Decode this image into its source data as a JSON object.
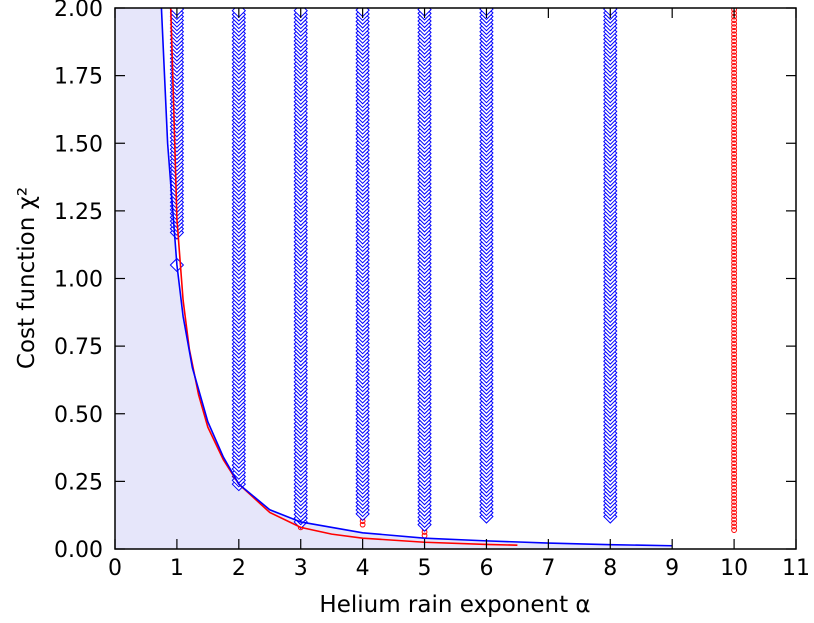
{
  "chart_data": {
    "type": "scatter",
    "xlabel": "Helium rain exponent α",
    "ylabel": "Cost function χ²",
    "xlim": [
      0,
      11
    ],
    "ylim": [
      0,
      2
    ],
    "x_ticks": [
      "0",
      "1",
      "2",
      "3",
      "4",
      "5",
      "6",
      "7",
      "8",
      "9",
      "10",
      "11"
    ],
    "y_ticks": [
      "0.00",
      "0.25",
      "0.50",
      "0.75",
      "1.00",
      "1.25",
      "1.50",
      "1.75",
      "2.00"
    ],
    "grid": false,
    "shaded_region": {
      "boundary": "blue envelope curve",
      "color": "#e6e6fa"
    },
    "series": [
      {
        "marker": "circle",
        "color": "#ff0000",
        "columns": [
          {
            "x": 1,
            "y_min": 1.22,
            "y_max": 2.0
          },
          {
            "x": 2,
            "y_min": 0.24,
            "y_max": 2.0
          },
          {
            "x": 3,
            "y_min": 0.08,
            "y_max": 2.0
          },
          {
            "x": 4,
            "y_min": 0.09,
            "y_max": 2.0
          },
          {
            "x": 5,
            "y_min": 0.05,
            "y_max": 2.0
          },
          {
            "x": 10,
            "y_min": 0.07,
            "y_max": 2.0
          }
        ],
        "envelope": {
          "x": [
            0.9,
            0.95,
            1,
            1.1,
            1.2,
            1.35,
            1.5,
            1.75,
            2,
            2.5,
            3,
            3.5,
            4,
            5,
            6,
            6.5
          ],
          "y": [
            2.0,
            1.62,
            1.22,
            0.92,
            0.74,
            0.57,
            0.45,
            0.33,
            0.24,
            0.135,
            0.08,
            0.055,
            0.04,
            0.025,
            0.017,
            0.014
          ]
        }
      },
      {
        "marker": "diamond",
        "color": "#0000ff",
        "columns": [
          {
            "x": 1,
            "y_min": 1.17,
            "y_max": 2.0,
            "outliers": [
              1.05
            ]
          },
          {
            "x": 2,
            "y_min": 0.24,
            "y_max": 2.0
          },
          {
            "x": 3,
            "y_min": 0.1,
            "y_max": 2.0
          },
          {
            "x": 4,
            "y_min": 0.13,
            "y_max": 2.0
          },
          {
            "x": 5,
            "y_min": 0.09,
            "y_max": 2.0
          },
          {
            "x": 6,
            "y_min": 0.12,
            "y_max": 2.0
          },
          {
            "x": 8,
            "y_min": 0.12,
            "y_max": 2.0
          }
        ],
        "envelope": {
          "x": [
            0.75,
            0.85,
            1,
            1.1,
            1.25,
            1.5,
            1.75,
            2,
            2.5,
            3,
            4,
            5,
            6,
            7,
            8,
            9
          ],
          "y": [
            2.0,
            1.5,
            1.05,
            0.86,
            0.67,
            0.47,
            0.34,
            0.24,
            0.145,
            0.1,
            0.06,
            0.04,
            0.03,
            0.022,
            0.016,
            0.012
          ]
        }
      }
    ]
  }
}
